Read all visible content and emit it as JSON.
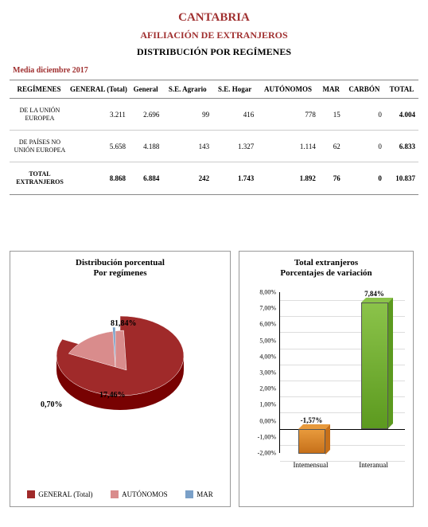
{
  "header": {
    "title1": "CANTABRIA",
    "title2": "AFILIACIÓN DE  EXTRANJEROS",
    "title3": "DISTRIBUCIÓN POR REGÍMENES",
    "period": "Media diciembre 2017"
  },
  "table": {
    "columns": [
      "REGÍMENES",
      "GENERAL (Total)",
      "General",
      "S.E. Agrario",
      "S.E. Hogar",
      "AUTÓNOMOS",
      "MAR",
      "CARBÓN",
      "TOTAL"
    ],
    "rows": [
      {
        "label": "DE LA UNIÓN EUROPEA",
        "vals": [
          "3.211",
          "2.696",
          "99",
          "416",
          "778",
          "15",
          "0",
          "4.004"
        ]
      },
      {
        "label": "DE PAÍSES NO UNIÓN EUROPEA",
        "vals": [
          "5.658",
          "4.188",
          "143",
          "1.327",
          "1.114",
          "62",
          "0",
          "6.833"
        ]
      },
      {
        "label": "TOTAL EXTRANJEROS",
        "vals": [
          "8.868",
          "6.884",
          "242",
          "1.743",
          "1.892",
          "76",
          "0",
          "10.837"
        ],
        "isTotal": true
      }
    ]
  },
  "pieChart": {
    "title_l1": "Distribución porcentual",
    "title_l2": "Por regímenes",
    "slices": [
      {
        "label": "GENERAL (Total)",
        "pct": 81.84,
        "pct_text": "81,84%",
        "color": "#a02a2a"
      },
      {
        "label": "AUTÓNOMOS",
        "pct": 17.46,
        "pct_text": "17,46%",
        "color": "#d98c8c"
      },
      {
        "label": "MAR",
        "pct": 0.7,
        "pct_text": "0,70%",
        "color": "#7aa0c8"
      }
    ],
    "legend_marker": "■",
    "title_fontsize": 11,
    "label_fontsize": 10,
    "background_color": "#ffffff",
    "style": "3d-exploded"
  },
  "barChart": {
    "title_l1": "Total extranjeros",
    "title_l2": "Porcentajes de variación",
    "y_ticks": [
      "-2,00%",
      "-1,00%",
      "0,00%",
      "1,00%",
      "2,00%",
      "3,00%",
      "4,00%",
      "5,00%",
      "6,00%",
      "7,00%",
      "8,00%"
    ],
    "y_min": -2.0,
    "y_max": 8.0,
    "categories": [
      "Intemensual",
      "Interanual"
    ],
    "values": [
      -1.57,
      7.84
    ],
    "value_labels": [
      "-1,57%",
      "7,84%"
    ],
    "bar_colors": [
      "#e89a3c",
      "#8bc34a"
    ],
    "bar_fill_gradient_to": [
      "#c6701a",
      "#5c9a1f"
    ],
    "title_fontsize": 11,
    "tick_fontsize": 8,
    "grid_color": "#dddddd",
    "axis_color": "#000000",
    "background_color": "#ffffff",
    "style": "3d"
  }
}
